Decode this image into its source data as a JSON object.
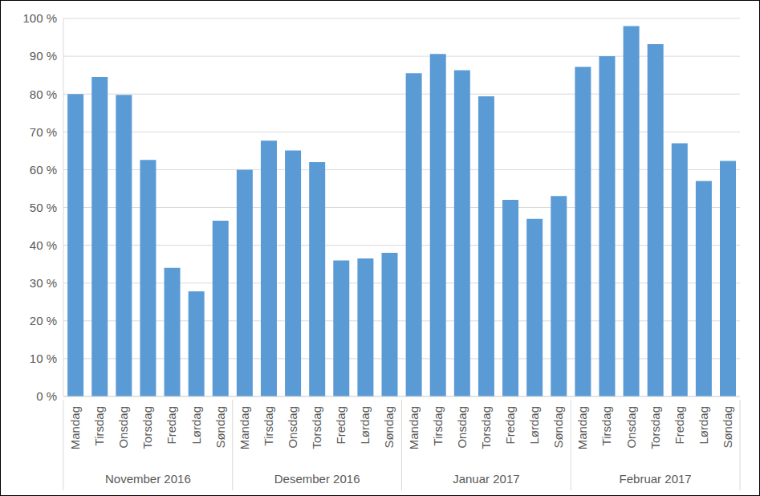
{
  "chart_data": {
    "type": "bar",
    "categories": [
      "Mandag",
      "Tirsdag",
      "Onsdag",
      "Torsdag",
      "Fredag",
      "Lørdag",
      "Søndag",
      "Mandag",
      "Tirsdag",
      "Onsdag",
      "Torsdag",
      "Fredag",
      "Lørdag",
      "Søndag",
      "Mandag",
      "Tirsdag",
      "Onsdag",
      "Torsdag",
      "Fredag",
      "Lørdag",
      "Søndag",
      "Mandag",
      "Tirsdag",
      "Onsdag",
      "Torsdag",
      "Fredag",
      "Lørdag",
      "Søndag"
    ],
    "group_labels": [
      "November 2016",
      "Desember 2016",
      "Januar 2017",
      "Februar 2017"
    ],
    "values": [
      80,
      84.5,
      79.8,
      62.6,
      34,
      27.8,
      46.5,
      60,
      67.7,
      65.1,
      62,
      36,
      36.5,
      38,
      85.5,
      90.6,
      86.3,
      79.4,
      52,
      47,
      53,
      87.2,
      90,
      98,
      93.2,
      67,
      57,
      62.3
    ],
    "color": "#5b9bd5",
    "ylim": [
      0,
      100
    ],
    "yticks": [
      {
        "value": 0,
        "label": "0 %"
      },
      {
        "value": 10,
        "label": "10 %"
      },
      {
        "value": 20,
        "label": "20 %"
      },
      {
        "value": 30,
        "label": "30 %"
      },
      {
        "value": 40,
        "label": "40 %"
      },
      {
        "value": 50,
        "label": "50 %"
      },
      {
        "value": 60,
        "label": "60 %"
      },
      {
        "value": 70,
        "label": "70 %"
      },
      {
        "value": 80,
        "label": "80 %"
      },
      {
        "value": 90,
        "label": "90 %"
      },
      {
        "value": 100,
        "label": "100 %"
      }
    ],
    "grid": true
  }
}
